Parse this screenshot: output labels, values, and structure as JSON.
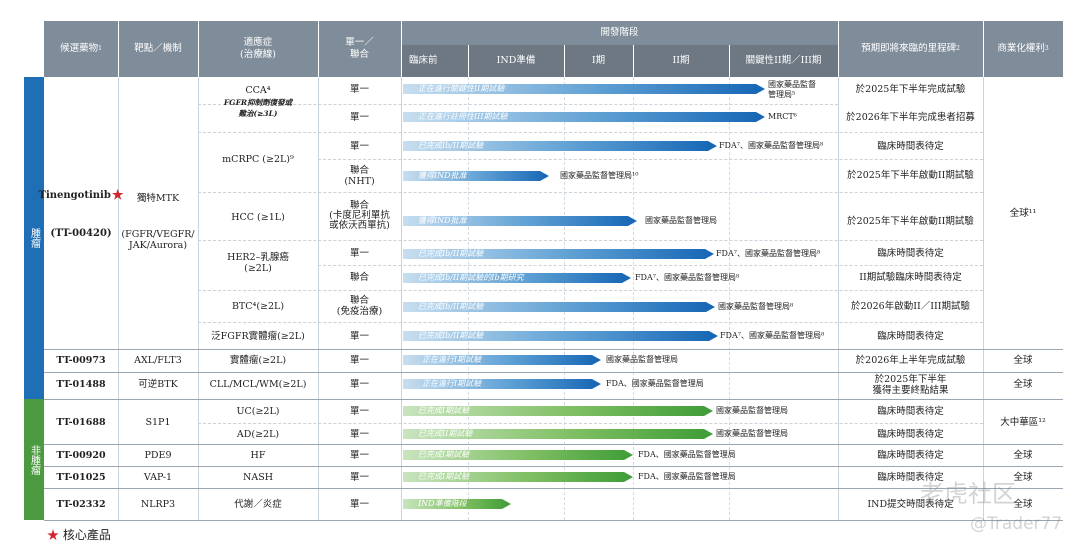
{
  "header": {
    "col_candidate": "候選藥物",
    "col_target": "靶點／機制",
    "col_indication": "適應症\n(治療線)",
    "col_mono": "單一／\n聯合",
    "col_stage": "開發階段",
    "stage_preclinical": "臨床前",
    "stage_ind": "IND準備",
    "stage_p1": "I期",
    "stage_p2": "II期",
    "stage_pivotal": "關鍵性II期／III期",
    "col_milestone": "預期即將來臨的里程碑",
    "col_commercial": "商業化權利"
  },
  "sidebar": {
    "oncology": "腫瘤",
    "non_oncology": "非腫瘤"
  },
  "tinengotinib": {
    "name": "Tinengotinib",
    "code": "(TT-00420)",
    "star": "★",
    "target_line1": "獨特MTK",
    "target_line2": "(FGFR/VEGFR/\nJAK/Aurora)",
    "rights": "全球¹¹"
  },
  "rows": [
    {
      "indication": "CCA⁴",
      "sub": "FGFR抑制劑復發或\n難治(≥3L)",
      "mono": "單一",
      "bar": "正在進行關鍵性II期試驗",
      "auth": "國家藥品監督\n管理局⁵",
      "milestone": "於2025年下半年完成試驗"
    },
    {
      "indication": "",
      "sub": "",
      "mono": "單一",
      "bar": "正在進行註冊性III期試驗",
      "auth": "MRCT⁶",
      "milestone": "於2026年下半年完成患者招募"
    },
    {
      "indication": "mCRPC (≥2L)⁹",
      "mono": "單一",
      "bar": "已完成Ib/II期試驗",
      "auth": "FDA⁷、國家藥品監督管理局⁸",
      "milestone": "臨床時間表待定"
    },
    {
      "mono": "聯合\n(NHT)",
      "bar": "獲得IND批准",
      "auth": "國家藥品監督管理局¹⁰",
      "milestone": "於2025年下半年啟動II期試驗"
    },
    {
      "indication": "HCC (≥1L)",
      "mono": "聯合\n(卡度尼利單抗\n或依沃西單抗)",
      "bar": "獲得IND批准",
      "auth": "國家藥品監督管理局",
      "milestone": "於2025年下半年啟動II期試驗"
    },
    {
      "indication": "HER2–乳腺癌\n(≥2L)",
      "mono": "單一",
      "bar": "已完成Ib/II期試驗",
      "auth": "FDA⁷、國家藥品監督管理局⁸",
      "milestone": "臨床時間表待定"
    },
    {
      "mono": "聯合",
      "bar": "已完成Ib/II期試驗的Ib期研究",
      "auth": "FDA⁷、國家藥品監督管理局⁸",
      "milestone": "II期試驗臨床時間表待定"
    },
    {
      "indication": "BTC⁴(≥2L)",
      "mono": "聯合\n(免疫治療)",
      "bar": "已完成Ib/II期試驗",
      "auth": "國家藥品監督管理局⁸",
      "milestone": "於2026年啟動II／III期試驗"
    },
    {
      "indication": "泛FGFR實體瘤(≥2L)",
      "mono": "單一",
      "bar": "已完成Ib/II期試驗",
      "auth": "FDA⁷、國家藥品監督管理局⁸",
      "milestone": "臨床時間表待定"
    }
  ],
  "others": [
    {
      "candidate": "TT-00973",
      "target": "AXL/FLT3",
      "indication": "實體瘤(≥2L)",
      "mono": "單一",
      "bar": "正在進行I期試驗",
      "auth": "國家藥品監督管理局",
      "milestone": "於2026年上半年完成試驗",
      "rights": "全球"
    },
    {
      "candidate": "TT-01488",
      "target": "可逆BTK",
      "indication": "CLL/MCL/WM(≥2L)",
      "mono": "單一",
      "bar": "正在進行I期試驗",
      "auth": "FDA、國家藥品監督管理局",
      "milestone": "於2025年下半年\n獲得主要終點結果",
      "rights": "全球"
    },
    {
      "candidate": "TT-01688",
      "target": "S1P1",
      "indication": "UC(≥2L)",
      "mono": "單一",
      "bar": "已完成I期試驗",
      "auth": "國家藥品監督管理局",
      "milestone": "臨床時間表待定",
      "rights": "大中華區¹²"
    },
    {
      "candidate": "",
      "target": "",
      "indication": "AD(≥2L)",
      "mono": "單一",
      "bar": "已完成II期試驗",
      "auth": "國家藥品監督管理局",
      "milestone": "臨床時間表待定",
      "rights": ""
    },
    {
      "candidate": "TT-00920",
      "target": "PDE9",
      "indication": "HF",
      "mono": "單一",
      "bar": "已完成I期試驗",
      "auth": "FDA、國家藥品監督管理局",
      "milestone": "臨床時間表待定",
      "rights": "全球"
    },
    {
      "candidate": "TT-01025",
      "target": "VAP-1",
      "indication": "NASH",
      "mono": "單一",
      "bar": "已完成I期試驗",
      "auth": "FDA、國家藥品監督管理局",
      "milestone": "臨床時間表待定",
      "rights": "全球"
    },
    {
      "candidate": "TT-02332",
      "target": "NLRP3",
      "indication": "代謝／炎症",
      "mono": "單一",
      "bar": "IND準備階段",
      "auth": "",
      "milestone": "IND提交時間表待定",
      "rights": "全球"
    }
  ],
  "footer": {
    "star": "★",
    "core_product": "核心產品"
  },
  "watermark": {
    "brand": "老虎社区",
    "user": "@Trader77"
  },
  "colors": {
    "oncology": "#1f6fb6",
    "non_oncology": "#4c9a3f",
    "header": "#7f8c99"
  }
}
